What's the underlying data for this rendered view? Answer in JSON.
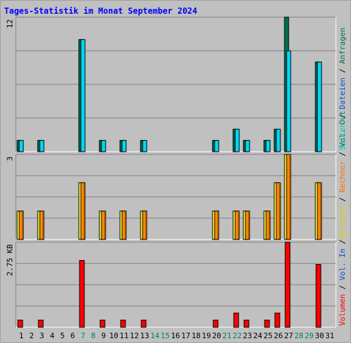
{
  "title": "Tages-Statistik im Monat September 2024",
  "colors": {
    "anfragen": "#007050",
    "dateien": "#00d8f8",
    "seiten": "#00ffff",
    "besuche": "#ffff40",
    "rechner": "#ff8800",
    "volumen": "#ff0000",
    "kilobytes": "#ff0000",
    "weekday_label": "#000000",
    "weekend_label": "#00805c",
    "right_label_seiten": "#00c8c8",
    "right_label_dateien": "#0050d0",
    "right_label_anfragen": "#007050",
    "right_label_besuche": "#d8d000",
    "right_label_rechner": "#ff7000",
    "right_label_out": "#00805c",
    "right_label_in": "#0050d0",
    "right_label_volumen": "#ff0000",
    "scale_label": "#000000",
    "title": "#0000ff"
  },
  "chart_data": [
    {
      "type": "bar",
      "panel": "top",
      "scale_label": "12",
      "ylim": [
        0,
        12
      ],
      "categories": [
        "1",
        "2",
        "3",
        "4",
        "5",
        "6",
        "7",
        "8",
        "9",
        "10",
        "11",
        "12",
        "13",
        "14",
        "15",
        "16",
        "17",
        "18",
        "19",
        "20",
        "21",
        "22",
        "23",
        "24",
        "25",
        "26",
        "27",
        "28",
        "29",
        "30",
        "31"
      ],
      "weekend": [
        false,
        false,
        false,
        false,
        false,
        false,
        true,
        true,
        false,
        false,
        false,
        false,
        false,
        true,
        true,
        false,
        false,
        false,
        false,
        false,
        true,
        true,
        false,
        false,
        false,
        false,
        false,
        true,
        true,
        false,
        false
      ],
      "right_labels": [
        "Seiten",
        "/",
        "Dateien",
        "/",
        "Anfragen"
      ],
      "series": [
        {
          "name": "Anfragen",
          "values": [
            1,
            0,
            1,
            0,
            0,
            0,
            10,
            0,
            1,
            0,
            1,
            0,
            1,
            0,
            0,
            0,
            0,
            0,
            0,
            1,
            0,
            2,
            1,
            0,
            1,
            2,
            12,
            0,
            0,
            8,
            0
          ]
        },
        {
          "name": "Dateien",
          "values": [
            1,
            0,
            1,
            0,
            0,
            0,
            10,
            0,
            1,
            0,
            1,
            0,
            1,
            0,
            0,
            0,
            0,
            0,
            0,
            1,
            0,
            2,
            1,
            0,
            1,
            2,
            9,
            0,
            0,
            8,
            0
          ]
        }
      ]
    },
    {
      "type": "bar",
      "panel": "middle",
      "scale_label": "3",
      "ylim": [
        0,
        3
      ],
      "right_labels": [
        "Besuche",
        "/",
        "Rechner",
        "/",
        "Vol. Out"
      ],
      "series": [
        {
          "name": "Besuche",
          "values": [
            1,
            0,
            1,
            0,
            0,
            0,
            2,
            0,
            1,
            0,
            1,
            0,
            1,
            0,
            0,
            0,
            0,
            0,
            0,
            1,
            0,
            1,
            1,
            0,
            1,
            2,
            3,
            0,
            0,
            2,
            0
          ]
        },
        {
          "name": "Rechner",
          "values": [
            1,
            0,
            1,
            0,
            0,
            0,
            2,
            0,
            1,
            0,
            1,
            0,
            1,
            0,
            0,
            0,
            0,
            0,
            0,
            1,
            0,
            1,
            1,
            0,
            1,
            2,
            3,
            0,
            0,
            2,
            0
          ]
        }
      ]
    },
    {
      "type": "bar",
      "panel": "bottom",
      "scale_label": "2.75 KB",
      "ylim": [
        0,
        2.75
      ],
      "right_labels": [
        "Volumen",
        "/",
        "Vol. In",
        "/"
      ],
      "series": [
        {
          "name": "Volumen",
          "values": [
            0.23,
            0,
            0.23,
            0,
            0,
            0,
            2.16,
            0,
            0.23,
            0,
            0.23,
            0,
            0.23,
            0,
            0,
            0,
            0,
            0,
            0,
            0.23,
            0,
            0.46,
            0.23,
            0,
            0.23,
            0.46,
            2.75,
            0,
            0,
            2.03,
            0
          ]
        }
      ]
    }
  ]
}
